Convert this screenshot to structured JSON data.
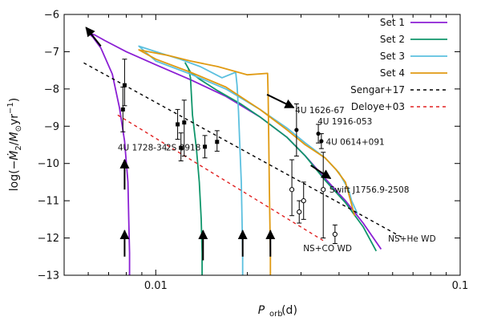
{
  "chart_data": {
    "type": "line",
    "xscale": "log",
    "xlim": [
      0.005,
      0.1
    ],
    "ylim": [
      -13,
      -6
    ],
    "xlabel": "P_orb (d)",
    "ylabel": "log(−Ṁ2/M⊙yr⁻¹)",
    "x_ticks": [
      {
        "value": 0.01,
        "label": "0.01"
      },
      {
        "value": 0.1,
        "label": "0.1"
      }
    ],
    "y_ticks": [
      {
        "value": -6,
        "label": "−6"
      },
      {
        "value": -7,
        "label": "−7"
      },
      {
        "value": -8,
        "label": "−8"
      },
      {
        "value": -9,
        "label": "−9"
      },
      {
        "value": -10,
        "label": "−10"
      },
      {
        "value": -11,
        "label": "−11"
      },
      {
        "value": -12,
        "label": "−12"
      },
      {
        "value": -13,
        "label": "−13"
      }
    ],
    "legend_position": "top-right",
    "series": [
      {
        "name": "Set 1",
        "color": "#8b1fd4",
        "style": "solid",
        "points": [
          [
            0.0082,
            -13
          ],
          [
            0.0082,
            -12.4
          ],
          [
            0.00815,
            -11.5
          ],
          [
            0.0081,
            -10.5
          ],
          [
            0.0079,
            -9.4
          ],
          [
            0.0076,
            -8.5
          ],
          [
            0.0072,
            -7.6
          ],
          [
            0.0066,
            -6.9
          ],
          [
            0.0062,
            -6.6
          ],
          [
            0.006,
            -6.5
          ],
          [
            0.0063,
            -6.55
          ],
          [
            0.0068,
            -6.7
          ],
          [
            0.008,
            -7.0
          ],
          [
            0.01,
            -7.35
          ],
          [
            0.013,
            -7.75
          ],
          [
            0.017,
            -8.2
          ],
          [
            0.022,
            -8.75
          ],
          [
            0.027,
            -9.3
          ],
          [
            0.031,
            -9.8
          ],
          [
            0.036,
            -10.4
          ],
          [
            0.042,
            -11.0
          ],
          [
            0.048,
            -11.6
          ],
          [
            0.055,
            -12.3
          ]
        ]
      },
      {
        "name": "Set 2",
        "color": "#10966b",
        "style": "solid",
        "points": [
          [
            0.0142,
            -13
          ],
          [
            0.0142,
            -12.4
          ],
          [
            0.0141,
            -11.5
          ],
          [
            0.0139,
            -10.5
          ],
          [
            0.0136,
            -9.6
          ],
          [
            0.0132,
            -8.7
          ],
          [
            0.013,
            -7.7
          ],
          [
            0.0128,
            -7.45
          ],
          [
            0.0125,
            -7.3
          ],
          [
            0.013,
            -7.55
          ],
          [
            0.014,
            -7.75
          ],
          [
            0.016,
            -8.05
          ],
          [
            0.019,
            -8.4
          ],
          [
            0.022,
            -8.75
          ],
          [
            0.027,
            -9.3
          ],
          [
            0.031,
            -9.8
          ],
          [
            0.036,
            -10.45
          ],
          [
            0.042,
            -11.05
          ],
          [
            0.048,
            -11.7
          ],
          [
            0.053,
            -12.35
          ]
        ]
      },
      {
        "name": "Set 3",
        "color": "#5cc0df",
        "style": "solid",
        "points": [
          [
            0.0193,
            -13
          ],
          [
            0.0193,
            -12.4
          ],
          [
            0.0192,
            -11.5
          ],
          [
            0.0191,
            -10.5
          ],
          [
            0.0189,
            -9.6
          ],
          [
            0.0187,
            -8.6
          ],
          [
            0.0185,
            -7.9
          ],
          [
            0.0183,
            -7.55
          ],
          [
            0.0165,
            -7.7
          ],
          [
            0.014,
            -7.4
          ],
          [
            0.012,
            -7.2
          ],
          [
            0.01,
            -7.0
          ],
          [
            0.0088,
            -6.85
          ],
          [
            0.01,
            -7.25
          ],
          [
            0.013,
            -7.6
          ],
          [
            0.017,
            -8.0
          ],
          [
            0.022,
            -8.55
          ],
          [
            0.027,
            -9.05
          ],
          [
            0.031,
            -9.45
          ],
          [
            0.036,
            -9.85
          ],
          [
            0.04,
            -10.25
          ],
          [
            0.043,
            -10.7
          ],
          [
            0.044,
            -11.0
          ],
          [
            0.046,
            -11.35
          ]
        ]
      },
      {
        "name": "Set 4",
        "color": "#e09a12",
        "style": "solid",
        "points": [
          [
            0.0238,
            -13
          ],
          [
            0.0238,
            -12.4
          ],
          [
            0.0237,
            -11.5
          ],
          [
            0.0236,
            -10.5
          ],
          [
            0.0235,
            -9.3
          ],
          [
            0.0234,
            -8.2
          ],
          [
            0.0233,
            -7.58
          ],
          [
            0.02,
            -7.62
          ],
          [
            0.016,
            -7.4
          ],
          [
            0.013,
            -7.25
          ],
          [
            0.011,
            -7.1
          ],
          [
            0.0088,
            -6.95
          ],
          [
            0.01,
            -7.2
          ],
          [
            0.013,
            -7.55
          ],
          [
            0.017,
            -7.95
          ],
          [
            0.022,
            -8.55
          ],
          [
            0.027,
            -9.1
          ],
          [
            0.031,
            -9.5
          ],
          [
            0.036,
            -9.85
          ],
          [
            0.039,
            -10.15
          ],
          [
            0.042,
            -10.5
          ],
          [
            0.043,
            -10.8
          ],
          [
            0.044,
            -11.1
          ],
          [
            0.045,
            -11.4
          ]
        ]
      },
      {
        "name": "Sengar+17",
        "color": "#000000",
        "style": "dashed",
        "points": [
          [
            0.0058,
            -7.3
          ],
          [
            0.065,
            -12.0
          ]
        ]
      },
      {
        "name": "Deloye+03",
        "color": "#e02020",
        "style": "dashed",
        "points": [
          [
            0.0075,
            -8.7
          ],
          [
            0.036,
            -12.1
          ]
        ]
      }
    ],
    "observations": [
      {
        "x": 0.0079,
        "y": -7.9,
        "yerr_low": 0.55,
        "yerr_high": 0.7,
        "marker": "filled-square"
      },
      {
        "x": 0.0078,
        "y": -8.55,
        "yerr_low": 0.6,
        "yerr_high": 0.6,
        "marker": "filled-square"
      },
      {
        "x": 0.0118,
        "y": -8.95,
        "yerr_low": 0.4,
        "yerr_high": 0.4,
        "marker": "filled-square"
      },
      {
        "x": 0.0124,
        "y": -8.9,
        "yerr_low": 0.9,
        "yerr_high": 0.6,
        "marker": "filled-square"
      },
      {
        "x": 0.0121,
        "y": -9.58,
        "yerr_low": 0.35,
        "yerr_high": 0.4,
        "marker": "filled-square"
      },
      {
        "x": 0.0145,
        "y": -9.55,
        "yerr_low": 0.3,
        "yerr_high": 0.3,
        "marker": "filled-square"
      },
      {
        "x": 0.0159,
        "y": -9.42,
        "yerr_low": 0.25,
        "yerr_high": 0.3,
        "marker": "filled-square"
      },
      {
        "x": 0.029,
        "y": -9.1,
        "yerr_low": 0.7,
        "yerr_high": 0.7,
        "marker": "filled-circle"
      },
      {
        "x": 0.0342,
        "y": -9.2,
        "yerr_low": 0.25,
        "yerr_high": 0.25,
        "marker": "filled-circle"
      },
      {
        "x": 0.035,
        "y": -9.4,
        "yerr_low": 0.2,
        "yerr_high": 0.2,
        "marker": "filled-circle"
      },
      {
        "x": 0.028,
        "y": -10.7,
        "yerr_low": 0.7,
        "yerr_high": 0.8,
        "marker": "open-circle"
      },
      {
        "x": 0.0296,
        "y": -11.3,
        "yerr_low": 0.3,
        "yerr_high": 0.3,
        "marker": "open-circle"
      },
      {
        "x": 0.0306,
        "y": -11.0,
        "yerr_low": 0.5,
        "yerr_high": 0.5,
        "marker": "open-circle"
      },
      {
        "x": 0.0355,
        "y": -10.7,
        "yerr_low": 1.3,
        "yerr_high": 1.0,
        "marker": "open-circle"
      },
      {
        "x": 0.0388,
        "y": -11.9,
        "yerr_low": 0.25,
        "yerr_high": 0.25,
        "marker": "open-circle"
      }
    ],
    "arrows": [
      {
        "from": [
          0.0066,
          -6.85
        ],
        "to": [
          0.0059,
          -6.35
        ]
      },
      {
        "from": [
          0.0232,
          -8.15
        ],
        "to": [
          0.0284,
          -8.5
        ]
      },
      {
        "from": [
          0.0323,
          -10.05
        ],
        "to": [
          0.0375,
          -10.4
        ]
      },
      {
        "from": [
          0.0079,
          -10.7
        ],
        "to": [
          0.0079,
          -9.9
        ]
      },
      {
        "from": [
          0.0079,
          -12.5
        ],
        "to": [
          0.0079,
          -11.8
        ]
      },
      {
        "from": [
          0.0143,
          -12.6
        ],
        "to": [
          0.0143,
          -11.8
        ]
      },
      {
        "from": [
          0.0193,
          -12.5
        ],
        "to": [
          0.0193,
          -11.8
        ]
      },
      {
        "from": [
          0.0238,
          -12.5
        ],
        "to": [
          0.0238,
          -11.8
        ]
      }
    ],
    "annotations": [
      {
        "text": "4U 1728-34",
        "x": 0.0075,
        "y": -9.65
      },
      {
        "text": "2S 0918",
        "x": 0.0108,
        "y": -9.65
      },
      {
        "text": "4U 1626-67",
        "x": 0.0287,
        "y": -8.65
      },
      {
        "text": "4U 1916-053",
        "x": 0.034,
        "y": -8.95
      },
      {
        "text": "4U 0614+091",
        "x": 0.0362,
        "y": -9.5
      },
      {
        "text": "Swift J1756.9-2508",
        "x": 0.0372,
        "y": -10.78
      },
      {
        "text": "NS+CO WD",
        "x": 0.0305,
        "y": -12.35
      },
      {
        "text": "NS+He WD",
        "x": 0.058,
        "y": -12.1
      }
    ]
  }
}
